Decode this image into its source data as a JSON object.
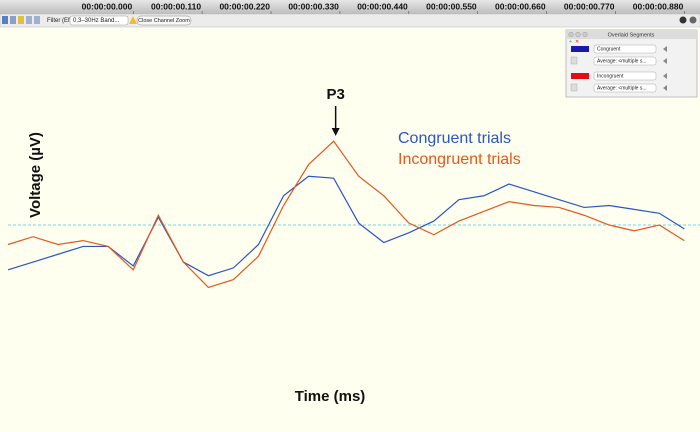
{
  "toolbar": {
    "filter_label": "Filter (Eff):",
    "filter_value": "0.3–30Hz Band...",
    "button": "Close Channel Zoom"
  },
  "panel": {
    "title": "Overlaid Segments",
    "rows": [
      {
        "name": "Congruent",
        "color": "#1a1aa8",
        "source": "Average: <multiple s..."
      },
      {
        "name": "Incongruent",
        "color": "#e01010",
        "source": "Average: <multiple s..."
      }
    ]
  },
  "chart_data": {
    "type": "line",
    "xlabel": "Time (ms)",
    "ylabel": "Voltage (µV)",
    "x": [
      -200,
      -160,
      -120,
      -80,
      -40,
      0,
      40,
      80,
      120,
      160,
      200,
      240,
      280,
      320,
      360,
      400,
      440,
      480,
      520,
      560,
      600,
      640,
      680,
      720,
      760,
      800,
      840,
      880
    ],
    "xlim": [
      -200,
      905
    ],
    "xticks": [
      {
        "value": 0,
        "label": "00:00:00.000"
      },
      {
        "value": 110,
        "label": "00:00:00.110"
      },
      {
        "value": 220,
        "label": "00:00:00.220"
      },
      {
        "value": 330,
        "label": "00:00:00.330"
      },
      {
        "value": 440,
        "label": "00:00:00.440"
      },
      {
        "value": 550,
        "label": "00:00:00.550"
      },
      {
        "value": 660,
        "label": "00:00:00.660"
      },
      {
        "value": 770,
        "label": "00:00:00.770"
      },
      {
        "value": 880,
        "label": "00:00:00.880"
      }
    ],
    "ylim": [
      -10,
      10
    ],
    "reference_line": 0,
    "series": [
      {
        "name": "Congruent trials",
        "color": "#2a55c8",
        "values": [
          -2.3,
          -1.9,
          -1.5,
          -1.1,
          -1.1,
          -2.1,
          0.4,
          -1.9,
          -2.6,
          -2.2,
          -1.0,
          1.5,
          2.5,
          2.4,
          0.1,
          -0.9,
          -0.4,
          0.2,
          1.3,
          1.5,
          2.1,
          1.7,
          1.3,
          0.9,
          1.0,
          0.8,
          0.6,
          -0.2
        ]
      },
      {
        "name": "Incongruent trials",
        "color": "#e8561c",
        "values": [
          -1.0,
          -0.6,
          -1.0,
          -0.8,
          -1.1,
          -2.3,
          0.5,
          -1.9,
          -3.2,
          -2.8,
          -1.6,
          1.0,
          3.1,
          4.3,
          2.5,
          1.5,
          0.1,
          -0.5,
          0.2,
          0.7,
          1.2,
          1.0,
          0.9,
          0.5,
          0.0,
          -0.3,
          0.0,
          -0.8
        ]
      }
    ],
    "annotations": [
      {
        "text": "P3",
        "x": 320
      }
    ]
  }
}
